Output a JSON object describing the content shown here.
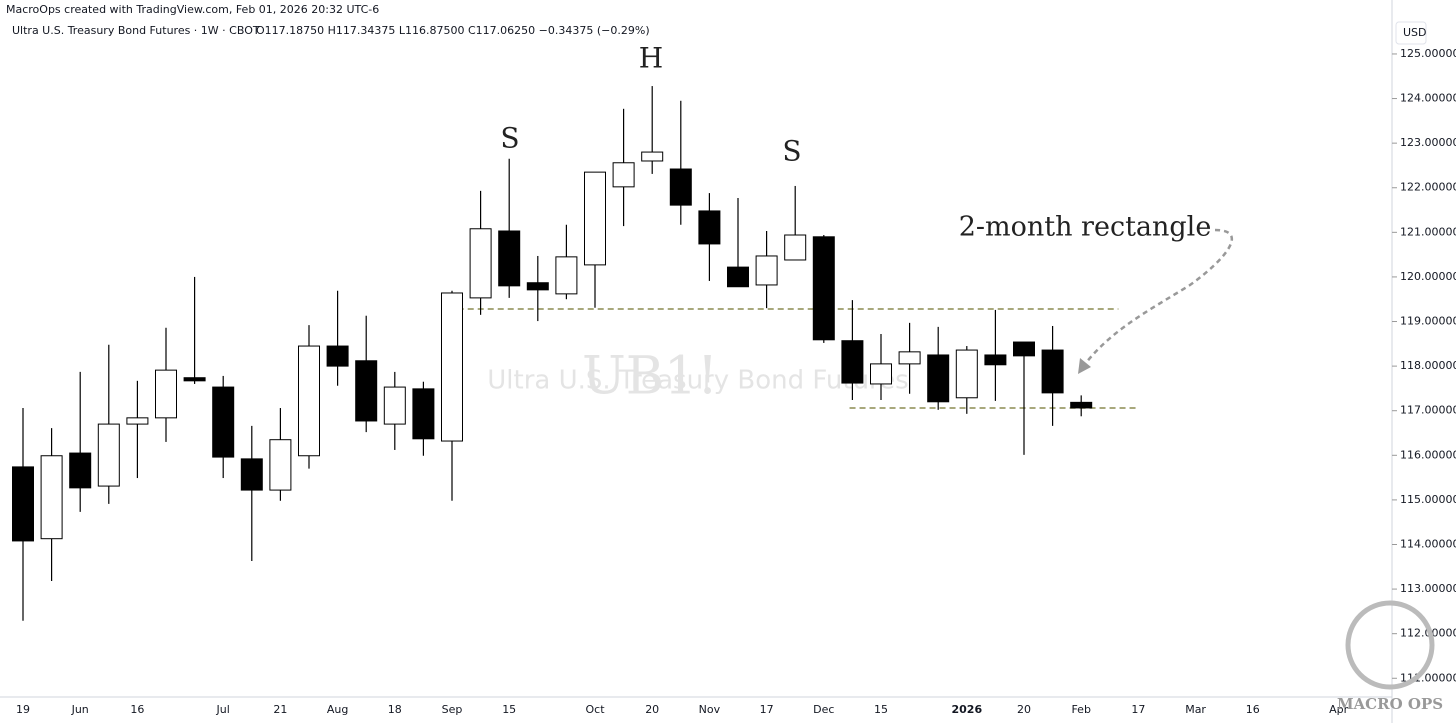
{
  "chart_data": {
    "type": "candlestick",
    "credit": "MacroOps created with TradingView.com, Feb 01, 2026 20:32 UTC-6",
    "title": "Ultra U.S. Treasury Bond Futures · 1W · CBOT",
    "ohlc_text": "O117.18750 H117.34375 L116.87500 C117.06250 −0.34375 (−0.29%)",
    "currency": "USD",
    "watermark_symbol": "UB1!",
    "watermark_name": "Ultra U.S. Treasury Bond Futures",
    "annotations": [
      "S",
      "H",
      "S",
      "2-month rectangle"
    ],
    "logo": "MACRO OPS",
    "categories": [
      "19",
      null,
      "Jun",
      null,
      "16",
      null,
      null,
      "Jul",
      null,
      "21",
      null,
      "Aug",
      null,
      "18",
      null,
      "Sep",
      null,
      "15",
      null,
      null,
      "Oct",
      null,
      "20",
      null,
      "Nov",
      null,
      "17",
      null,
      "Dec",
      null,
      "15",
      null,
      null,
      "2026",
      null,
      "20",
      null,
      "Feb",
      null,
      "17",
      null,
      "Mar",
      null,
      "16",
      null,
      null,
      "Apr",
      null
    ],
    "open": [
      115.74,
      114.13,
      116.05,
      115.31,
      116.7,
      116.84,
      117.74,
      117.53,
      115.92,
      115.22,
      115.99,
      118.45,
      118.12,
      116.7,
      117.49,
      116.32,
      119.53,
      121.03,
      119.87,
      119.62,
      120.27,
      122.02,
      122.6,
      122.42,
      121.48,
      120.22,
      119.82,
      120.38,
      120.9,
      118.57,
      117.6,
      118.05,
      118.25,
      117.29,
      118.25,
      118.54,
      118.36,
      117.1875,
      null,
      null,
      null,
      null,
      null,
      null,
      null,
      null,
      null,
      null
    ],
    "high": [
      117.06,
      116.61,
      117.87,
      118.48,
      117.67,
      118.86,
      120.0,
      117.78,
      116.66,
      117.06,
      118.92,
      119.69,
      119.13,
      117.87,
      117.65,
      119.69,
      121.93,
      122.65,
      120.47,
      121.17,
      122.35,
      123.77,
      124.28,
      123.95,
      121.88,
      121.77,
      121.03,
      122.04,
      120.94,
      119.48,
      118.72,
      118.97,
      118.88,
      118.45,
      119.26,
      118.54,
      118.9,
      117.34375,
      null,
      null,
      null,
      null,
      null,
      null,
      null,
      null,
      null,
      null
    ],
    "low": [
      112.29,
      113.18,
      114.73,
      114.91,
      115.49,
      116.3,
      117.6,
      115.49,
      113.63,
      114.98,
      115.7,
      117.56,
      116.52,
      116.12,
      115.99,
      114.98,
      119.15,
      119.53,
      119.01,
      119.5,
      119.31,
      121.14,
      122.31,
      121.17,
      119.91,
      119.78,
      119.3,
      120.38,
      118.52,
      117.24,
      117.24,
      117.38,
      117.02,
      116.93,
      117.22,
      116.01,
      116.66,
      116.875,
      null,
      null,
      null,
      null,
      null,
      null,
      null,
      null,
      null,
      null
    ],
    "close": [
      114.08,
      115.99,
      115.27,
      116.7,
      116.84,
      117.91,
      117.67,
      115.96,
      115.22,
      116.35,
      118.45,
      118.0,
      116.77,
      117.53,
      116.37,
      119.64,
      121.08,
      119.8,
      119.71,
      120.45,
      122.35,
      122.56,
      122.8,
      121.61,
      120.74,
      119.78,
      120.47,
      120.94,
      118.59,
      117.62,
      118.05,
      118.32,
      117.2,
      118.36,
      118.03,
      118.23,
      117.4,
      117.0625,
      null,
      null,
      null,
      null,
      null,
      null,
      null,
      null,
      null,
      null
    ],
    "up_color": "#ffffff",
    "down_color": "#000000",
    "level_color": "#8c8c50",
    "levels": [
      119.28,
      117.06
    ],
    "ylim": [
      110.58,
      126.21
    ],
    "yticks": [
      {
        "value": 111,
        "label": "111.00000"
      },
      {
        "value": 112,
        "label": "112.00000"
      },
      {
        "value": 113,
        "label": "113.00000"
      },
      {
        "value": 114,
        "label": "114.00000"
      },
      {
        "value": 115,
        "label": "115.00000"
      },
      {
        "value": 116,
        "label": "116.00000"
      },
      {
        "value": 117,
        "label": "117.00000"
      },
      {
        "value": 118,
        "label": "118.00000"
      },
      {
        "value": 119,
        "label": "119.00000"
      },
      {
        "value": 120,
        "label": "120.00000"
      },
      {
        "value": 121,
        "label": "121.00000"
      },
      {
        "value": 122,
        "label": "122.00000"
      },
      {
        "value": 123,
        "label": "123.00000"
      },
      {
        "value": 124,
        "label": "124.00000"
      },
      {
        "value": 125,
        "label": "125.00000"
      }
    ]
  }
}
